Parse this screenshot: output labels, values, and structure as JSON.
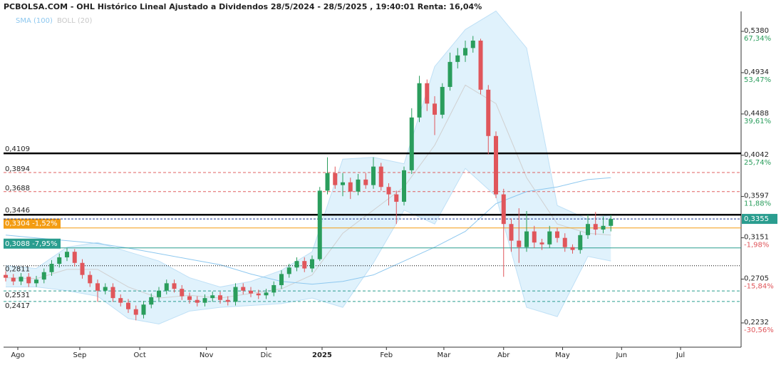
{
  "chart_data": {
    "type": "candlestick",
    "title": "PCBOLSA.COM - OHL Histórico Lineal Ajustado a Dividendos 28/5/2024 - 28/5/2025 , 19:40:01 Renta: 16,04%",
    "indicator_names": [
      "SMA (100)",
      "BOLL (20)"
    ],
    "up_color": "#2a9d5c",
    "down_color": "#e0565b",
    "xlim": [
      -0.28,
      96
    ],
    "ylim": [
      0.197,
      0.558
    ],
    "xticks": [
      {
        "value": 1.58,
        "label": "Ago"
      },
      {
        "value": 9.67,
        "label": "Sep"
      },
      {
        "value": 17.5,
        "label": "Oct"
      },
      {
        "value": 26.2,
        "label": "Nov"
      },
      {
        "value": 34,
        "label": "Dic"
      },
      {
        "value": 41.3,
        "label": "2025"
      },
      {
        "value": 49.7,
        "label": "Feb"
      },
      {
        "value": 57.2,
        "label": "Mar"
      },
      {
        "value": 65,
        "label": "Abr"
      },
      {
        "value": 72.7,
        "label": "May"
      },
      {
        "value": 80.4,
        "label": "Jun"
      },
      {
        "value": 88.1,
        "label": "Jul"
      }
    ],
    "yticks": [
      {
        "value": 0.538,
        "label": "0,5380"
      },
      {
        "value": 0.4934,
        "label": "0,4934"
      },
      {
        "value": 0.4488,
        "label": "0,4488"
      },
      {
        "value": 0.4042,
        "label": "0,4042"
      },
      {
        "value": 0.3597,
        "label": "0,3597"
      },
      {
        "value": 0.3151,
        "label": "0,3151"
      },
      {
        "value": 0.2705,
        "label": "0,2705"
      },
      {
        "value": 0.2232,
        "label": "0,2232"
      }
    ],
    "ytick_changes": [
      "67,34%",
      "53,47%",
      "39,61%",
      "25,74%",
      "11,88%",
      "-1,98%",
      "-15,84%",
      "-30,56%"
    ],
    "last_price": {
      "value": 0.3355,
      "label": "0,3355"
    },
    "levels": [
      {
        "value": 0.4109,
        "label": "0,4109",
        "style": "thick"
      },
      {
        "value": 0.3894,
        "label": "0,3894",
        "style": "red-dash"
      },
      {
        "value": 0.3688,
        "label": "0,3688",
        "style": "red-dash"
      },
      {
        "value": 0.3446,
        "label": "0,3446",
        "style": "thick"
      },
      {
        "value": 0.3304,
        "label": "0,3304 -1,52%",
        "style": "orange-box"
      },
      {
        "value": 0.3088,
        "label": "0,3088 -7,95%",
        "style": "green-box"
      },
      {
        "value": 0.2811,
        "label": "0,2811",
        "style": "black-dot"
      },
      {
        "value": 0.2531,
        "label": "0,2531",
        "style": "teal-dash"
      },
      {
        "value": 0.2417,
        "label": "0,2417",
        "style": "teal-dash"
      }
    ],
    "open": [
      0.275,
      0.272,
      0.268,
      0.273,
      0.266,
      0.27,
      0.278,
      0.287,
      0.294,
      0.3,
      0.288,
      0.275,
      0.266,
      0.258,
      0.262,
      0.25,
      0.245,
      0.238,
      0.232,
      0.243,
      0.251,
      0.258,
      0.266,
      0.26,
      0.252,
      0.248,
      0.245,
      0.25,
      0.253,
      0.248,
      0.246,
      0.262,
      0.258,
      0.255,
      0.253,
      0.256,
      0.264,
      0.276,
      0.283,
      0.29,
      0.282,
      0.292,
      0.366,
      0.385,
      0.372,
      0.375,
      0.365,
      0.378,
      0.372,
      0.392,
      0.37,
      0.362,
      0.354,
      0.388,
      0.445,
      0.482,
      0.46,
      0.448,
      0.478,
      0.505,
      0.512,
      0.52,
      0.528,
      0.475,
      0.425,
      0.362,
      0.33,
      0.312,
      0.305,
      0.322,
      0.31,
      0.308,
      0.322,
      0.315,
      0.305,
      0.302,
      0.318,
      0.33,
      0.324,
      0.328
    ],
    "high": [
      0.279,
      0.276,
      0.277,
      0.277,
      0.274,
      0.282,
      0.291,
      0.298,
      0.304,
      0.303,
      0.292,
      0.279,
      0.27,
      0.266,
      0.266,
      0.254,
      0.249,
      0.242,
      0.247,
      0.255,
      0.262,
      0.27,
      0.27,
      0.264,
      0.256,
      0.252,
      0.254,
      0.257,
      0.257,
      0.252,
      0.266,
      0.266,
      0.262,
      0.259,
      0.26,
      0.268,
      0.28,
      0.287,
      0.294,
      0.294,
      0.296,
      0.37,
      0.402,
      0.392,
      0.385,
      0.38,
      0.384,
      0.385,
      0.402,
      0.396,
      0.374,
      0.366,
      0.392,
      0.455,
      0.49,
      0.486,
      0.468,
      0.482,
      0.515,
      0.52,
      0.528,
      0.533,
      0.53,
      0.48,
      0.43,
      0.368,
      0.336,
      0.347,
      0.344,
      0.328,
      0.314,
      0.328,
      0.326,
      0.32,
      0.308,
      0.322,
      0.34,
      0.343,
      0.338,
      0.34
    ],
    "low": [
      0.268,
      0.264,
      0.264,
      0.262,
      0.262,
      0.266,
      0.274,
      0.283,
      0.29,
      0.284,
      0.271,
      0.262,
      0.246,
      0.254,
      0.246,
      0.241,
      0.234,
      0.226,
      0.228,
      0.239,
      0.247,
      0.254,
      0.256,
      0.248,
      0.244,
      0.241,
      0.241,
      0.246,
      0.244,
      0.242,
      0.242,
      0.254,
      0.251,
      0.249,
      0.249,
      0.252,
      0.26,
      0.272,
      0.279,
      0.278,
      0.278,
      0.29,
      0.362,
      0.368,
      0.36,
      0.357,
      0.361,
      0.368,
      0.368,
      0.366,
      0.35,
      0.33,
      0.35,
      0.384,
      0.44,
      0.452,
      0.426,
      0.444,
      0.474,
      0.498,
      0.505,
      0.515,
      0.47,
      0.405,
      0.358,
      0.273,
      0.3,
      0.288,
      0.3,
      0.304,
      0.302,
      0.304,
      0.31,
      0.3,
      0.298,
      0.298,
      0.314,
      0.318,
      0.32,
      0.322
    ],
    "close": [
      0.272,
      0.268,
      0.273,
      0.266,
      0.27,
      0.278,
      0.287,
      0.294,
      0.3,
      0.288,
      0.275,
      0.266,
      0.258,
      0.262,
      0.25,
      0.245,
      0.238,
      0.232,
      0.243,
      0.251,
      0.258,
      0.266,
      0.26,
      0.252,
      0.248,
      0.245,
      0.25,
      0.253,
      0.248,
      0.246,
      0.262,
      0.258,
      0.255,
      0.253,
      0.256,
      0.264,
      0.276,
      0.283,
      0.29,
      0.282,
      0.292,
      0.366,
      0.385,
      0.372,
      0.375,
      0.365,
      0.378,
      0.372,
      0.392,
      0.37,
      0.362,
      0.354,
      0.388,
      0.445,
      0.482,
      0.46,
      0.448,
      0.478,
      0.505,
      0.512,
      0.52,
      0.528,
      0.475,
      0.425,
      0.362,
      0.33,
      0.312,
      0.305,
      0.322,
      0.31,
      0.308,
      0.322,
      0.315,
      0.305,
      0.302,
      0.318,
      0.33,
      0.324,
      0.328,
      0.3355
    ],
    "indicator_x": [
      0,
      4,
      8,
      12,
      16,
      20,
      24,
      28,
      32,
      36,
      40,
      44,
      48,
      52,
      56,
      60,
      64,
      68,
      72,
      76,
      79
    ],
    "boll_upper": [
      0.285,
      0.282,
      0.305,
      0.31,
      0.3,
      0.29,
      0.272,
      0.262,
      0.268,
      0.28,
      0.3,
      0.4,
      0.402,
      0.395,
      0.5,
      0.54,
      0.56,
      0.52,
      0.35,
      0.335,
      0.34
    ],
    "boll_lower": [
      0.262,
      0.262,
      0.258,
      0.252,
      0.228,
      0.222,
      0.236,
      0.24,
      0.242,
      0.244,
      0.25,
      0.24,
      0.288,
      0.345,
      0.33,
      0.39,
      0.36,
      0.24,
      0.23,
      0.295,
      0.29
    ],
    "boll_middle": [
      0.272,
      0.271,
      0.281,
      0.281,
      0.262,
      0.25,
      0.253,
      0.25,
      0.255,
      0.26,
      0.275,
      0.32,
      0.345,
      0.37,
      0.415,
      0.48,
      0.46,
      0.38,
      0.33,
      0.32,
      0.318
    ],
    "sma": [
      0.318,
      0.315,
      0.312,
      0.309,
      0.304,
      0.298,
      0.292,
      0.286,
      0.276,
      0.268,
      0.265,
      0.268,
      0.275,
      0.29,
      0.305,
      0.322,
      0.352,
      0.365,
      0.37,
      0.378,
      0.38
    ]
  }
}
